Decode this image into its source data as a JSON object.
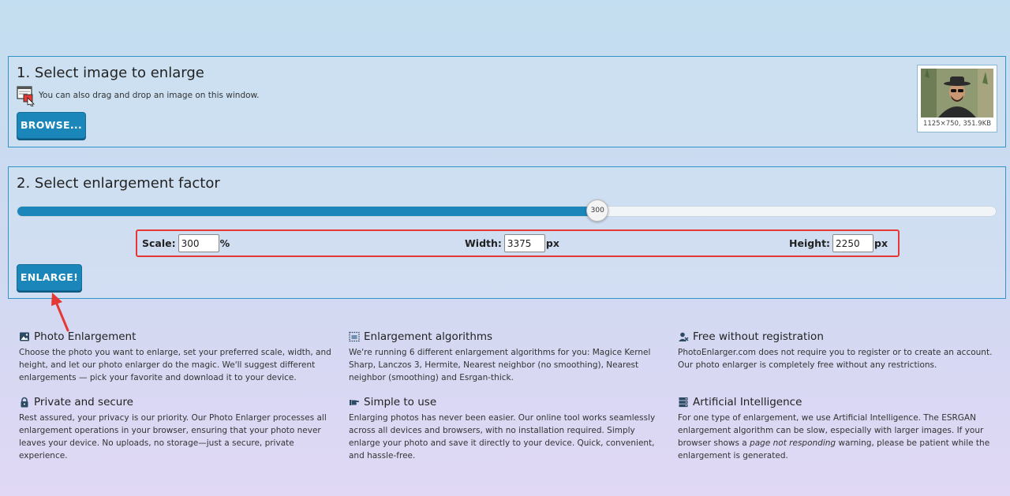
{
  "step1": {
    "title": "1. Select image to enlarge",
    "drag_hint": "You can also drag and drop an image on this window.",
    "browse_label": "BROWSE...",
    "thumbnail_caption": "1125×750, 351.9KB"
  },
  "step2": {
    "title": "2. Select enlargement factor",
    "slider": {
      "value": 300,
      "label": "300",
      "min": 0,
      "max": 400
    },
    "scale": {
      "label": "Scale:",
      "value": "300",
      "unit": "%"
    },
    "width": {
      "label": "Width:",
      "value": "3375",
      "unit": "px"
    },
    "height": {
      "label": "Height:",
      "value": "2250",
      "unit": "px"
    },
    "enlarge_label": "ENLARGE!"
  },
  "features": [
    {
      "icon": "image-icon",
      "title": "Photo Enlargement",
      "text": "Choose the photo you want to enlarge, set your preferred scale, width, and height, and let our photo enlarger do the magic. We'll suggest different enlargements — pick your favorite and download it to your device."
    },
    {
      "icon": "selection-icon",
      "title": "Enlargement algorithms",
      "text": "We're running 6 different enlargement algorithms for you: Magice Kernel Sharp, Lanczos 3, Hermite, Nearest neighbor (no smoothing), Nearest neighbor (smoothing) and Esrgan-thick."
    },
    {
      "icon": "user-no-registration-icon",
      "title": "Free without registration",
      "text": "PhotoEnlarger.com does not require you to register or to create an account. Our photo enlarger is completely free without any restrictions."
    },
    {
      "icon": "lock-icon",
      "title": "Private and secure",
      "text": "Rest assured, your privacy is our priority. Our Photo Enlarger processes all enlargement operations in your browser, ensuring that your photo never leaves your device. No uploads, no storage—just a secure, private experience."
    },
    {
      "icon": "hand-pointing-icon",
      "title": "Simple to use",
      "text": "Enlarging photos has never been easier. Our online tool works seamlessly across all devices and browsers, with no installation required. Simply enlarge your photo and save it directly to your device. Quick, convenient, and hassle-free."
    },
    {
      "icon": "server-icon",
      "title": "Artificial Intelligence",
      "text_before": "For one type of enlargement, we use Artificial Intelligence. The ESRGAN enlargement algorithm can be slow, especially with larger images. If your browser shows a ",
      "text_italic": "page not responding",
      "text_after": " warning, please be patient while the enlargement is generated."
    }
  ],
  "colors": {
    "accent": "#1a86ba",
    "panel_border": "#2f95c6",
    "highlight": "#e53935"
  }
}
